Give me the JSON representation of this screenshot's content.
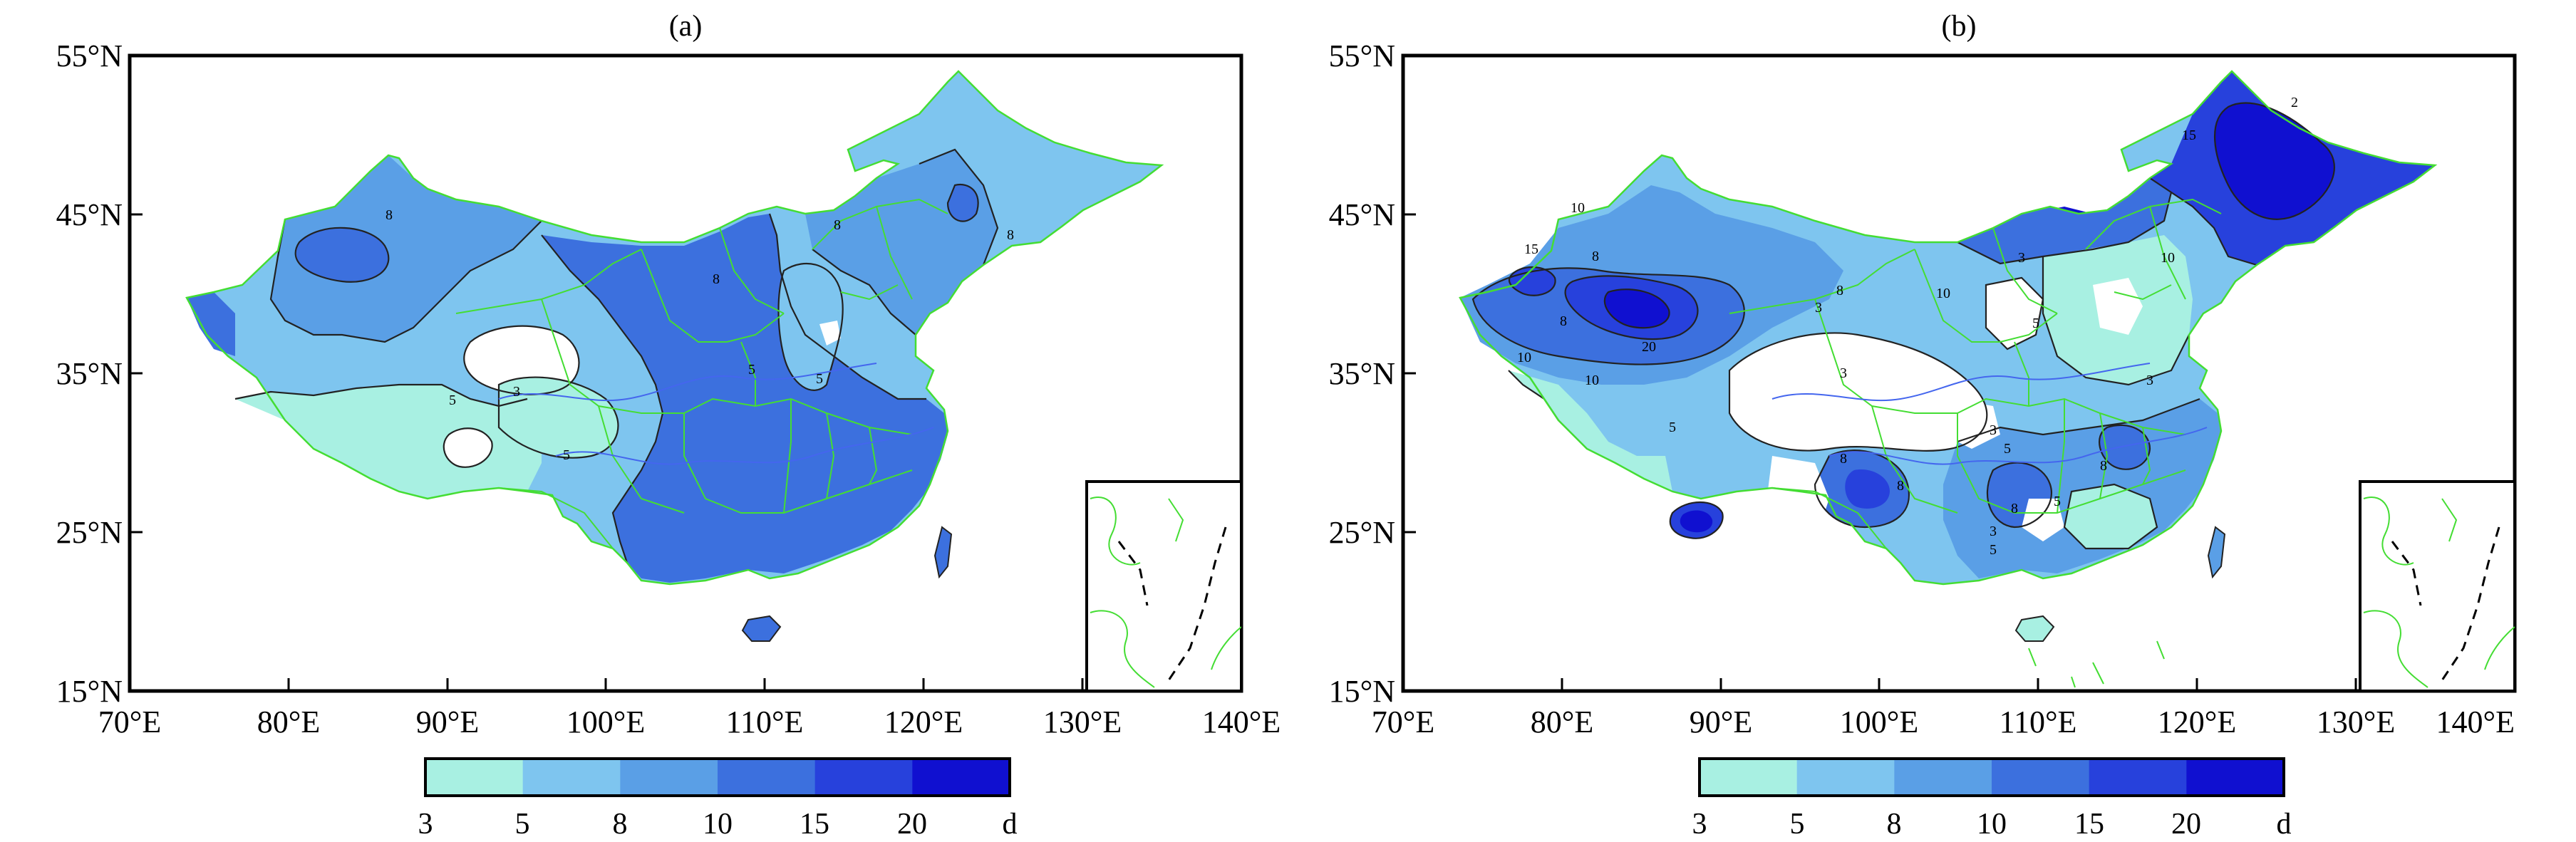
{
  "panels": [
    {
      "id": "a",
      "label": "(a)",
      "lat_ticks": [
        "55°N",
        "45°N",
        "35°N",
        "25°N",
        "15°N"
      ],
      "lon_ticks": [
        "70°E",
        "80°E",
        "90°E",
        "100°E",
        "110°E",
        "120°E",
        "130°E",
        "140°E"
      ],
      "contour_labels": [
        "8",
        "8",
        "8",
        "8",
        "5",
        "5",
        "3",
        "5",
        "5"
      ],
      "colorbar": {
        "ticks": [
          "3",
          "5",
          "8",
          "10",
          "15",
          "20"
        ],
        "unit": "d"
      }
    },
    {
      "id": "b",
      "label": "(b)",
      "lat_ticks": [
        "55°N",
        "45°N",
        "35°N",
        "25°N",
        "15°N"
      ],
      "lon_ticks": [
        "70°E",
        "80°E",
        "90°E",
        "100°E",
        "110°E",
        "120°E",
        "130°E",
        "140°E"
      ],
      "contour_labels": [
        "2",
        "15",
        "10",
        "10",
        "15",
        "8",
        "8",
        "10",
        "20",
        "10",
        "8",
        "3",
        "3",
        "3",
        "8",
        "10",
        "5",
        "3",
        "5",
        "3",
        "8",
        "5",
        "8",
        "5",
        "3",
        "5",
        "8"
      ],
      "colorbar": {
        "ticks": [
          "3",
          "5",
          "8",
          "10",
          "15",
          "20"
        ],
        "unit": "d"
      }
    }
  ],
  "legend_colors": [
    "#a8f0e2",
    "#7ec5ef",
    "#5a9fe6",
    "#3c70de",
    "#2741dc",
    "#1010d0"
  ],
  "map_colors": {
    "border": "#44dd33",
    "river": "#4466ee",
    "contour": "#222222",
    "frame": "#000000"
  }
}
